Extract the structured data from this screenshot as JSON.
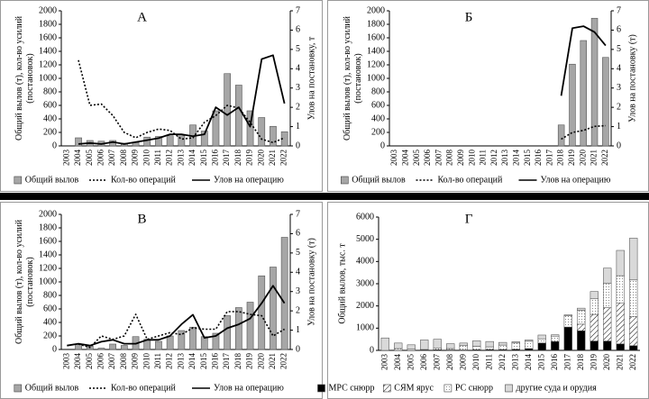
{
  "chart_data": [
    {
      "type": "combo",
      "label": "А",
      "ylabel": "Общий вылов (т), кол-во усилий (постановок)",
      "y2label": "Улов на постановку, т",
      "categories": [
        "2003",
        "2004",
        "2005",
        "2006",
        "2007",
        "2008",
        "2009",
        "2010",
        "2011",
        "2012",
        "2013",
        "2014",
        "2015",
        "2016",
        "2017",
        "2018",
        "2019",
        "2020",
        "2021",
        "2022"
      ],
      "ylim": [
        0,
        2000
      ],
      "yticks": [
        0,
        200,
        400,
        600,
        800,
        1000,
        1200,
        1400,
        1600,
        1800,
        2000
      ],
      "y2lim": [
        0,
        7
      ],
      "y2ticks": [
        0,
        1,
        2,
        3,
        4,
        5,
        6,
        7
      ],
      "legend": "bottom",
      "series": [
        {
          "name": "Общий вылов",
          "kind": "bar",
          "color": "#a6a6a6",
          "values": [
            null,
            120,
            80,
            70,
            80,
            40,
            50,
            130,
            140,
            150,
            150,
            310,
            220,
            520,
            1070,
            900,
            520,
            420,
            290,
            210
          ]
        },
        {
          "name": "Кол-во операций",
          "kind": "line",
          "dash": "dotted",
          "color": "#000000",
          "values": [
            null,
            1270,
            600,
            620,
            450,
            200,
            120,
            200,
            250,
            230,
            100,
            120,
            350,
            450,
            600,
            560,
            350,
            100,
            50,
            120
          ]
        },
        {
          "name": "Улов на операцию",
          "kind": "line",
          "axis": "y2",
          "color": "#000000",
          "values": [
            null,
            0.1,
            0.15,
            0.1,
            0.2,
            0.1,
            0.2,
            0.3,
            0.4,
            0.6,
            0.6,
            0.5,
            0.6,
            2.0,
            1.6,
            2.0,
            1.0,
            4.5,
            4.7,
            2.2
          ]
        }
      ]
    },
    {
      "type": "combo",
      "label": "Б",
      "ylabel": "Общий вылов (т), кол-во усилий (постановок)",
      "y2label": "Улов на постановку (т)",
      "categories": [
        "2003",
        "2004",
        "2005",
        "2006",
        "2007",
        "2008",
        "2009",
        "2010",
        "2011",
        "2012",
        "2013",
        "2014",
        "2015",
        "2016",
        "2017",
        "2018",
        "2019",
        "2020",
        "2021",
        "2022"
      ],
      "ylim": [
        0,
        2000
      ],
      "yticks": [
        0,
        200,
        400,
        600,
        800,
        1000,
        1200,
        1400,
        1600,
        1800,
        2000
      ],
      "y2lim": [
        0,
        7
      ],
      "y2ticks": [
        0,
        1,
        2,
        3,
        4,
        5,
        6,
        7
      ],
      "legend": "bottom",
      "series": [
        {
          "name": "Общий вылов",
          "kind": "bar",
          "color": "#a6a6a6",
          "values": [
            null,
            null,
            null,
            null,
            null,
            null,
            null,
            null,
            null,
            null,
            null,
            null,
            null,
            null,
            null,
            310,
            1210,
            1560,
            1890,
            1310
          ]
        },
        {
          "name": "Кол-во операций",
          "kind": "line",
          "dash": "dotted",
          "color": "#000000",
          "values": [
            null,
            null,
            null,
            null,
            null,
            null,
            null,
            null,
            null,
            null,
            null,
            null,
            null,
            null,
            null,
            100,
            200,
            230,
            290,
            300
          ]
        },
        {
          "name": "Улов на операцию",
          "kind": "line",
          "axis": "y2",
          "color": "#000000",
          "values": [
            null,
            null,
            null,
            null,
            null,
            null,
            null,
            null,
            null,
            null,
            null,
            null,
            null,
            null,
            null,
            2.6,
            6.1,
            6.2,
            5.9,
            5.2
          ]
        }
      ]
    },
    {
      "type": "combo",
      "label": "В",
      "ylabel": "Общий вылов (т), кол-во усилий (постановок)",
      "y2label": "Улов на постановку (т)",
      "categories": [
        "2003",
        "2004",
        "2005",
        "2006",
        "2007",
        "2008",
        "2009",
        "2010",
        "2011",
        "2012",
        "2013",
        "2014",
        "2015",
        "2016",
        "2017",
        "2018",
        "2019",
        "2020",
        "2021",
        "2022"
      ],
      "ylim": [
        0,
        2000
      ],
      "yticks": [
        0,
        200,
        400,
        600,
        800,
        1000,
        1200,
        1400,
        1600,
        1800,
        2000
      ],
      "y2lim": [
        0,
        7
      ],
      "y2ticks": [
        0,
        1,
        2,
        3,
        4,
        5,
        6,
        7
      ],
      "legend": "bottom",
      "series": [
        {
          "name": "Общий вылов",
          "kind": "bar",
          "color": "#a6a6a6",
          "values": [
            null,
            80,
            50,
            20,
            80,
            60,
            190,
            150,
            120,
            200,
            280,
            330,
            190,
            240,
            500,
            620,
            700,
            1090,
            1220,
            1660
          ]
        },
        {
          "name": "Кол-во операций",
          "kind": "line",
          "dash": "dotted",
          "color": "#000000",
          "values": [
            null,
            80,
            30,
            200,
            150,
            200,
            520,
            150,
            200,
            250,
            220,
            320,
            300,
            300,
            560,
            560,
            520,
            500,
            200,
            300
          ]
        },
        {
          "name": "Улов на операцию",
          "kind": "line",
          "axis": "y2",
          "color": "#000000",
          "values": [
            0.2,
            0.3,
            0.2,
            0.4,
            0.5,
            0.3,
            0.3,
            0.5,
            0.5,
            0.7,
            1.3,
            1.8,
            0.6,
            0.7,
            1.1,
            1.3,
            1.6,
            2.4,
            3.3,
            2.4
          ]
        }
      ]
    },
    {
      "type": "stacked",
      "label": "Г",
      "ylabel": "Общий вылов, тыс. т",
      "categories": [
        "2003",
        "2004",
        "2005",
        "2006",
        "2007",
        "2008",
        "2009",
        "2010",
        "2011",
        "2012",
        "2013",
        "2014",
        "2015",
        "2016",
        "2017",
        "2018",
        "2019",
        "2020",
        "2021",
        "2022"
      ],
      "ylim": [
        0,
        6000
      ],
      "yticks": [
        0,
        1000,
        2000,
        3000,
        4000,
        5000,
        6000
      ],
      "legend": "bottom",
      "series": [
        {
          "name": "МРС снюрр",
          "color": "#000000",
          "values": [
            0,
            0,
            0,
            20,
            30,
            20,
            20,
            30,
            40,
            40,
            50,
            80,
            330,
            400,
            1050,
            880,
            420,
            420,
            290,
            210
          ]
        },
        {
          "name": "СЯМ ярус",
          "color": "#ffffff",
          "pattern": "hatch",
          "values": [
            0,
            0,
            0,
            0,
            0,
            0,
            0,
            0,
            0,
            0,
            0,
            0,
            0,
            0,
            0,
            300,
            1200,
            1500,
            1850,
            1300
          ]
        },
        {
          "name": "РС снюрр",
          "color": "#ffffff",
          "pattern": "dots",
          "values": [
            0,
            80,
            50,
            20,
            80,
            60,
            190,
            150,
            120,
            200,
            280,
            330,
            190,
            240,
            500,
            620,
            700,
            1090,
            1220,
            1660
          ]
        },
        {
          "name": "другие суда и орудия",
          "color": "#d9d9d9",
          "values": [
            560,
            250,
            200,
            430,
            390,
            220,
            120,
            250,
            240,
            120,
            60,
            60,
            170,
            60,
            50,
            100,
            330,
            690,
            1140,
            1880
          ]
        }
      ]
    }
  ]
}
